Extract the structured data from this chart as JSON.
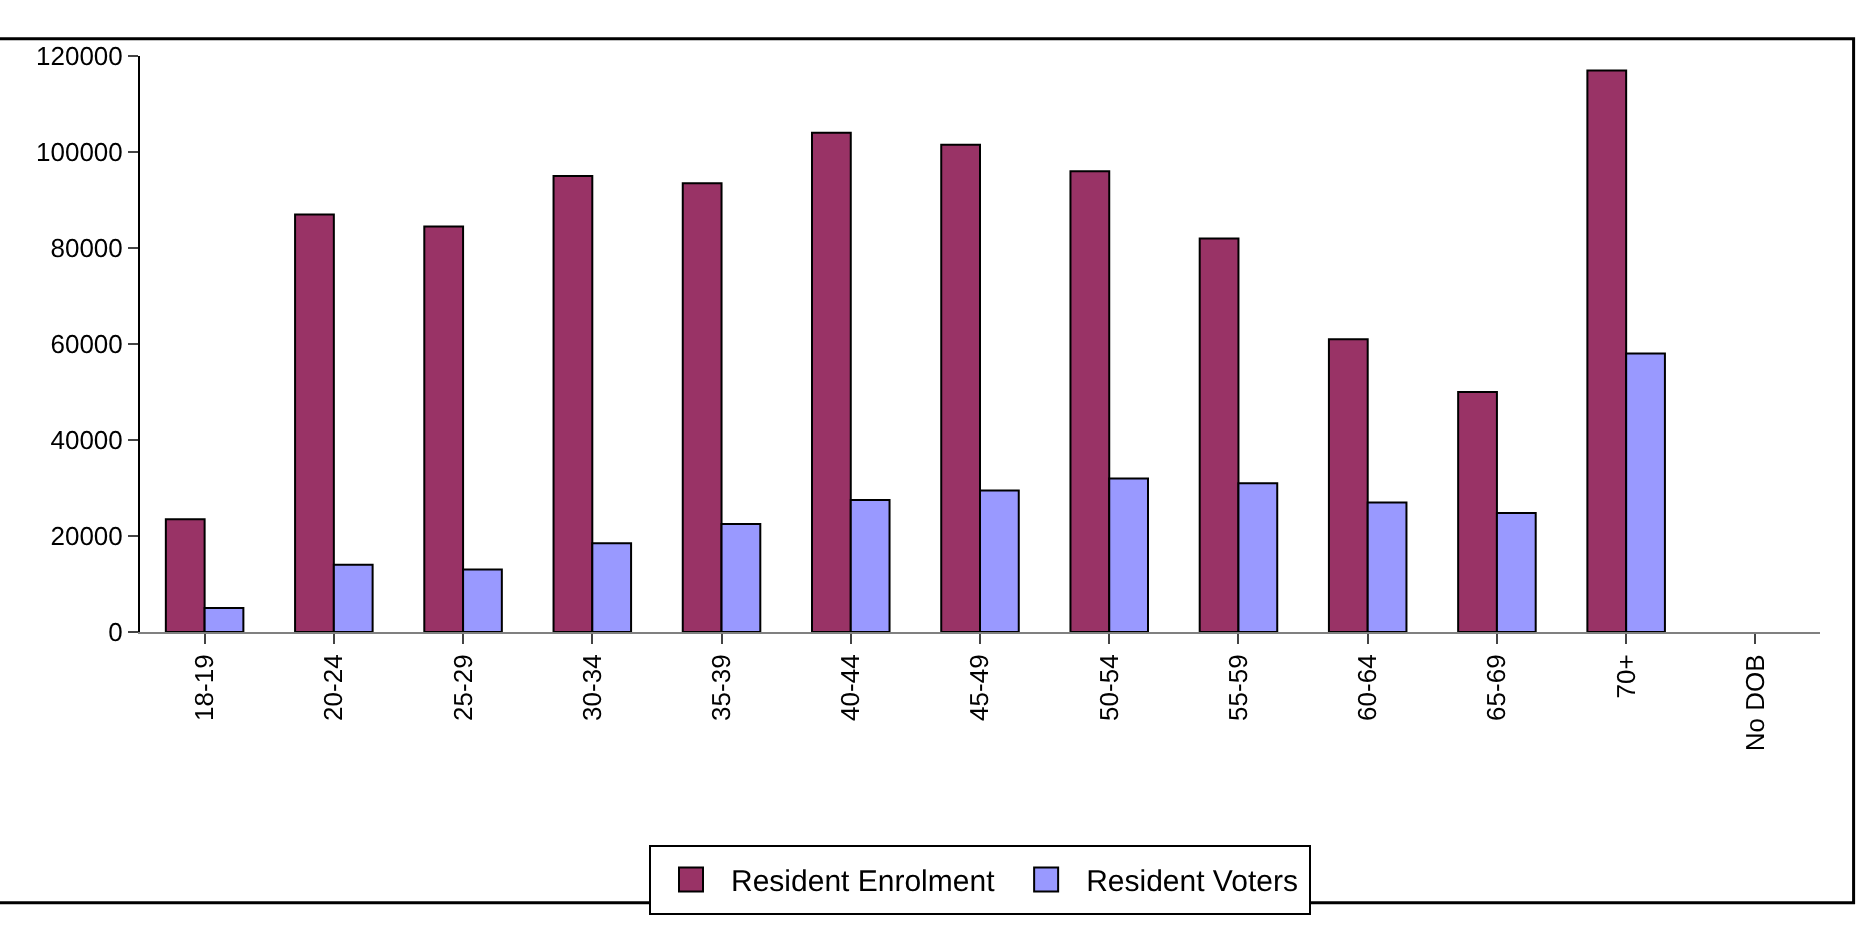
{
  "chart_data": {
    "type": "bar",
    "categories": [
      "18-19",
      "20-24",
      "25-29",
      "30-34",
      "35-39",
      "40-44",
      "45-49",
      "50-54",
      "55-59",
      "60-64",
      "65-69",
      "70+",
      "No DOB"
    ],
    "series": [
      {
        "name": "Resident Enrolment",
        "color": "#993366",
        "values": [
          23500,
          87000,
          84500,
          95000,
          93500,
          104000,
          101500,
          96000,
          82000,
          61000,
          50000,
          117000,
          null
        ]
      },
      {
        "name": "Resident Voters",
        "color": "#9999ff",
        "values": [
          5000,
          14000,
          13000,
          18500,
          22500,
          27500,
          29500,
          32000,
          31000,
          27000,
          24800,
          58000,
          null
        ]
      }
    ],
    "ylim": [
      0,
      120000
    ],
    "yticks": [
      0,
      20000,
      40000,
      60000,
      80000,
      100000,
      120000
    ],
    "legend": "bottom"
  }
}
